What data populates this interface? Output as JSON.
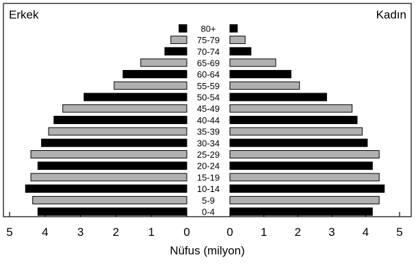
{
  "chart_data": {
    "type": "bar",
    "subtype": "population-pyramid",
    "left_label": "Erkek",
    "right_label": "Kadın",
    "xlabel": "Nüfus (milyon)",
    "xlim": [
      0,
      5
    ],
    "x_ticks": [
      "5",
      "4",
      "3",
      "2",
      "1",
      "0",
      "0",
      "1",
      "2",
      "3",
      "4",
      "5"
    ],
    "categories": [
      "80+",
      "75-79",
      "70-74",
      "65-69",
      "60-64",
      "55-59",
      "50-54",
      "45-49",
      "40-44",
      "35-39",
      "30-34",
      "25-29",
      "20-24",
      "15-19",
      "10-14",
      "5-9",
      "0-4"
    ],
    "series": [
      {
        "side": "left",
        "values": [
          0.22,
          0.45,
          0.62,
          1.3,
          1.8,
          2.05,
          2.9,
          3.5,
          3.75,
          3.9,
          4.1,
          4.4,
          4.2,
          4.4,
          4.55,
          4.35,
          4.2
        ]
      },
      {
        "side": "right",
        "values": [
          0.22,
          0.45,
          0.62,
          1.35,
          1.8,
          2.05,
          2.85,
          3.6,
          3.75,
          3.9,
          4.05,
          4.4,
          4.2,
          4.4,
          4.55,
          4.4,
          4.2
        ]
      }
    ],
    "bar_fill_pattern": [
      "#000000",
      "#b0b0b0"
    ],
    "grid": false
  }
}
